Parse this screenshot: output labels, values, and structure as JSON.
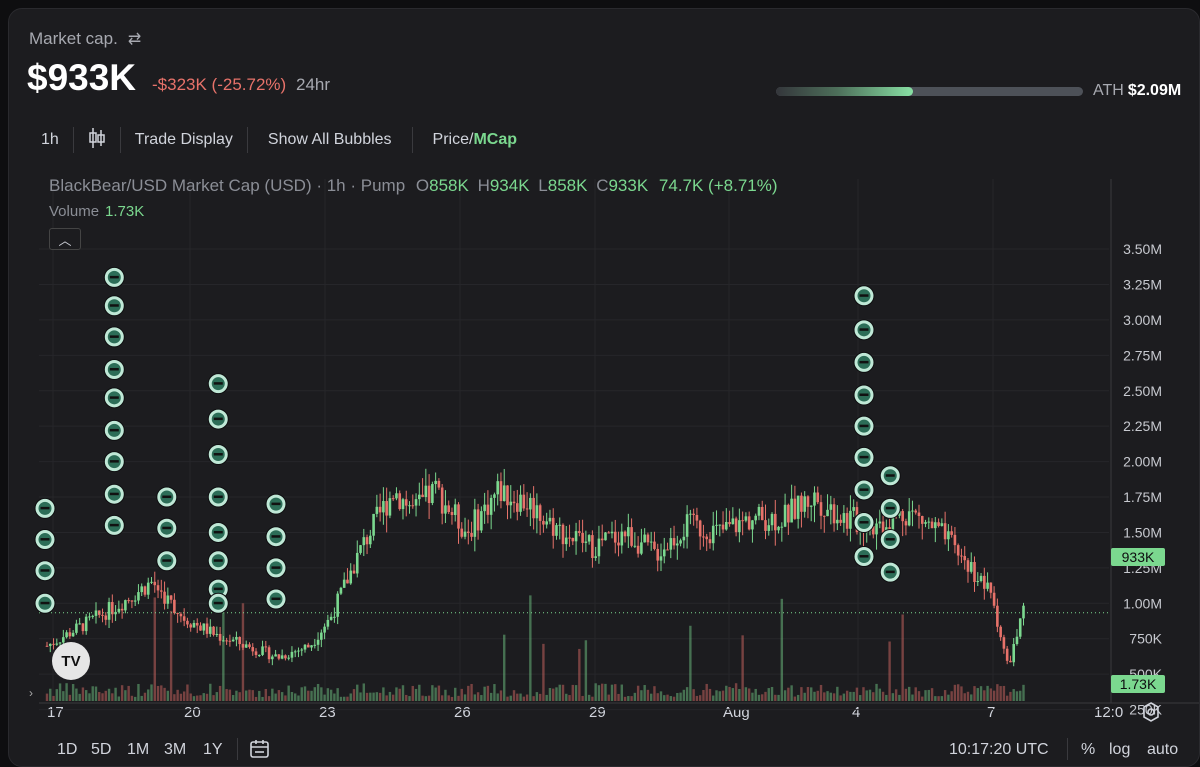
{
  "header": {
    "label": "Market cap.",
    "swap_icon": "swap-arrows-icon",
    "value": "$933K",
    "change": "-$323K (-25.72%)",
    "period": "24hr",
    "ath_label": "ATH",
    "ath_value": "$2.09M",
    "ath_progress": 0.446
  },
  "toolbar": {
    "interval": "1h",
    "candles_icon": "candlestick-icon",
    "trade_display": "Trade Display",
    "show_bubbles": "Show All Bubbles",
    "price_label": "Price/",
    "mcap_label": "MCap"
  },
  "legend": {
    "title": "BlackBear/USD Market Cap (USD) · 1h · Pump",
    "o_key": "O",
    "o_val": "858K",
    "h_key": "H",
    "h_val": "934K",
    "l_key": "L",
    "l_val": "858K",
    "c_key": "C",
    "c_val": "933K",
    "change": "74.7K (+8.71%)",
    "volume_label": "Volume",
    "volume_value": "1.73K",
    "collapse_icon": "chevron-up-icon"
  },
  "price_tags": {
    "last": "933K",
    "volume": "1.73K"
  },
  "colors": {
    "up": "#7bd88f",
    "down": "#e7726a",
    "bubble_ring": "#bfe8d6",
    "bubble_fill": "#2c6d57"
  },
  "chart_data": {
    "type": "candlestick",
    "title": "BlackBear/USD Market Cap (USD) · 1h · Pump",
    "y_ticks": [
      "3.50M",
      "3.25M",
      "3.00M",
      "2.75M",
      "2.50M",
      "2.25M",
      "2.00M",
      "1.75M",
      "1.50M",
      "1.25M",
      "1.00M",
      "750K",
      "500K",
      "250K"
    ],
    "y_tick_values": [
      3500000,
      3250000,
      3000000,
      2750000,
      2500000,
      2250000,
      2000000,
      1750000,
      1500000,
      1250000,
      1000000,
      750000,
      500000,
      250000
    ],
    "x_ticks": [
      "17",
      "20",
      "23",
      "26",
      "29",
      "Aug",
      "4",
      "7",
      "12:0"
    ],
    "ylim": [
      0,
      3650000
    ],
    "last_value": 933000,
    "trend": [
      {
        "t": 0,
        "v": 700000
      },
      {
        "t": 0.04,
        "v": 870000
      },
      {
        "t": 0.07,
        "v": 1000000
      },
      {
        "t": 0.1,
        "v": 1150000
      },
      {
        "t": 0.13,
        "v": 900000
      },
      {
        "t": 0.16,
        "v": 780000
      },
      {
        "t": 0.19,
        "v": 700000
      },
      {
        "t": 0.22,
        "v": 620000
      },
      {
        "t": 0.25,
        "v": 700000
      },
      {
        "t": 0.27,
        "v": 900000
      },
      {
        "t": 0.3,
        "v": 1400000
      },
      {
        "t": 0.33,
        "v": 1800000
      },
      {
        "t": 0.35,
        "v": 1650000
      },
      {
        "t": 0.37,
        "v": 1800000
      },
      {
        "t": 0.4,
        "v": 1500000
      },
      {
        "t": 0.43,
        "v": 1800000
      },
      {
        "t": 0.46,
        "v": 1700000
      },
      {
        "t": 0.49,
        "v": 1500000
      },
      {
        "t": 0.52,
        "v": 1400000
      },
      {
        "t": 0.55,
        "v": 1500000
      },
      {
        "t": 0.58,
        "v": 1350000
      },
      {
        "t": 0.61,
        "v": 1550000
      },
      {
        "t": 0.64,
        "v": 1500000
      },
      {
        "t": 0.67,
        "v": 1600000
      },
      {
        "t": 0.7,
        "v": 1600000
      },
      {
        "t": 0.73,
        "v": 1750000
      },
      {
        "t": 0.76,
        "v": 1600000
      },
      {
        "t": 0.79,
        "v": 1550000
      },
      {
        "t": 0.82,
        "v": 1650000
      },
      {
        "t": 0.85,
        "v": 1500000
      },
      {
        "t": 0.88,
        "v": 1250000
      },
      {
        "t": 0.9,
        "v": 1050000
      },
      {
        "t": 0.915,
        "v": 550000
      },
      {
        "t": 0.93,
        "v": 933000
      }
    ],
    "bubbles": [
      {
        "x": 0.0,
        "vs": [
          1.67,
          1.45,
          1.23,
          1.0
        ]
      },
      {
        "x": 0.066,
        "vs": [
          3.3,
          3.1,
          2.88,
          2.65,
          2.45,
          2.22,
          2.0,
          1.77,
          1.55
        ]
      },
      {
        "x": 0.116,
        "vs": [
          1.75,
          1.53,
          1.3
        ]
      },
      {
        "x": 0.165,
        "vs": [
          2.55,
          2.3,
          2.05,
          1.75,
          1.5,
          1.3,
          1.1,
          1.0
        ]
      },
      {
        "x": 0.22,
        "vs": [
          1.7,
          1.47,
          1.25,
          1.03
        ]
      },
      {
        "x": 0.78,
        "vs": [
          3.17,
          2.93,
          2.7,
          2.47,
          2.25,
          2.03,
          1.8,
          1.57,
          1.33
        ]
      },
      {
        "x": 0.805,
        "vs": [
          1.9,
          1.67,
          1.45,
          1.22
        ]
      }
    ]
  },
  "bottom": {
    "ranges": [
      "1D",
      "5D",
      "1M",
      "3M",
      "1Y"
    ],
    "calendar_icon": "calendar-icon",
    "clock": "10:17:20 UTC",
    "percent": "%",
    "log": "log",
    "auto": "auto",
    "settings_icon": "settings-icon",
    "tv_logo": "TV",
    "side_arrow": "›"
  }
}
